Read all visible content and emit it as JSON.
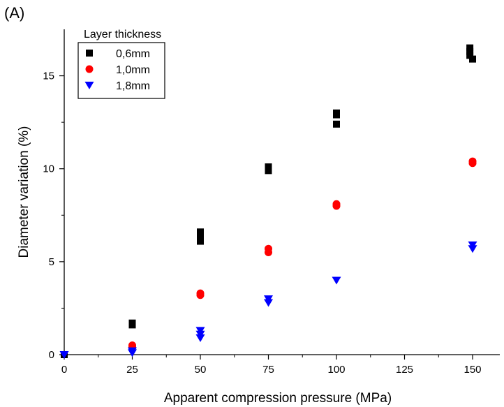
{
  "panel_label": "(A)",
  "chart_data": {
    "type": "scatter",
    "xlabel": "Apparent compression pressure (MPa)",
    "ylabel": "Diameter variation (%)",
    "xlim": [
      0,
      160
    ],
    "ylim": [
      0,
      17.5
    ],
    "x_ticks": [
      0,
      25,
      50,
      75,
      100,
      125,
      150
    ],
    "y_ticks": [
      0,
      5,
      10,
      15
    ],
    "grid": false,
    "legend": {
      "title": "Layer thickness",
      "position": "top-left"
    },
    "series": [
      {
        "name": "0,6mm",
        "marker": "square",
        "color": "#000000",
        "points": [
          [
            0,
            0
          ],
          [
            25,
            1.6
          ],
          [
            25,
            1.7
          ],
          [
            50,
            6.1
          ],
          [
            50,
            6.3
          ],
          [
            50,
            6.5
          ],
          [
            50,
            6.6
          ],
          [
            75,
            9.9
          ],
          [
            75,
            10.1
          ],
          [
            100,
            12.4
          ],
          [
            100,
            12.9
          ],
          [
            100,
            13.0
          ],
          [
            149,
            16.1
          ],
          [
            149,
            16.3
          ],
          [
            149,
            16.5
          ],
          [
            150,
            15.9
          ]
        ]
      },
      {
        "name": "1,0mm",
        "marker": "circle",
        "color": "#ff0000",
        "points": [
          [
            25,
            0.4
          ],
          [
            25,
            0.5
          ],
          [
            50,
            3.2
          ],
          [
            50,
            3.3
          ],
          [
            75,
            5.5
          ],
          [
            75,
            5.7
          ],
          [
            100,
            8.0
          ],
          [
            100,
            8.1
          ],
          [
            150,
            10.3
          ],
          [
            150,
            10.4
          ]
        ]
      },
      {
        "name": "1,8mm",
        "marker": "triangle-down",
        "color": "#0000ff",
        "points": [
          [
            0,
            0
          ],
          [
            25,
            0.1
          ],
          [
            25,
            0.2
          ],
          [
            50,
            0.9
          ],
          [
            50,
            1.1
          ],
          [
            50,
            1.3
          ],
          [
            75,
            2.8
          ],
          [
            75,
            3.0
          ],
          [
            100,
            4.0
          ],
          [
            150,
            5.7
          ],
          [
            150,
            5.9
          ]
        ]
      }
    ]
  }
}
